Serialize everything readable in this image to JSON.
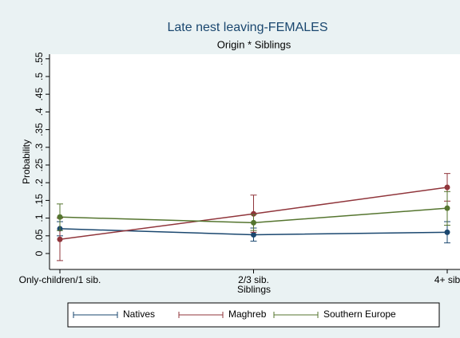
{
  "chart_data": {
    "type": "line",
    "title": "Late nest leaving-FEMALES",
    "subtitle": "Origin * Siblings",
    "x_label": "Siblings",
    "y_label": "Probability",
    "categories": [
      "Only-children/1 sib.",
      "2/3 sib.",
      "4+ sib"
    ],
    "ylim": [
      -0.045,
      0.563
    ],
    "yticks": [
      0,
      {
        "value": 0.05,
        "label": ".05"
      },
      {
        "value": 0.1,
        "label": ".1"
      },
      {
        "value": 0.15,
        "label": ".15"
      },
      {
        "value": 0.2,
        "label": ".2"
      },
      {
        "value": 0.25,
        "label": ".25"
      },
      {
        "value": 0.3,
        "label": ".3"
      },
      {
        "value": 0.35,
        "label": ".35"
      },
      {
        "value": 0.4,
        "label": ".4"
      },
      {
        "value": 0.45,
        "label": ".45"
      },
      {
        "value": 0.5,
        "label": ".5"
      },
      {
        "value": 0.55,
        "label": ".55"
      }
    ],
    "grid": false,
    "legend": "bottom",
    "series": [
      {
        "name": "Natives",
        "color": "#1a476f",
        "values": [
          0.07,
          0.053,
          0.06
        ],
        "ci_low": [
          0.05,
          0.035,
          0.03
        ],
        "ci_high": [
          0.09,
          0.072,
          0.09
        ]
      },
      {
        "name": "Maghreb",
        "color": "#90353b",
        "values": [
          0.04,
          0.112,
          0.187
        ],
        "ci_low": [
          -0.02,
          0.06,
          0.148
        ],
        "ci_high": [
          0.1,
          0.165,
          0.226
        ]
      },
      {
        "name": "Southern Europe",
        "color": "#55752f",
        "values": [
          0.103,
          0.087,
          0.128
        ],
        "ci_low": [
          0.065,
          0.065,
          0.08
        ],
        "ci_high": [
          0.14,
          0.11,
          0.175
        ]
      }
    ]
  }
}
